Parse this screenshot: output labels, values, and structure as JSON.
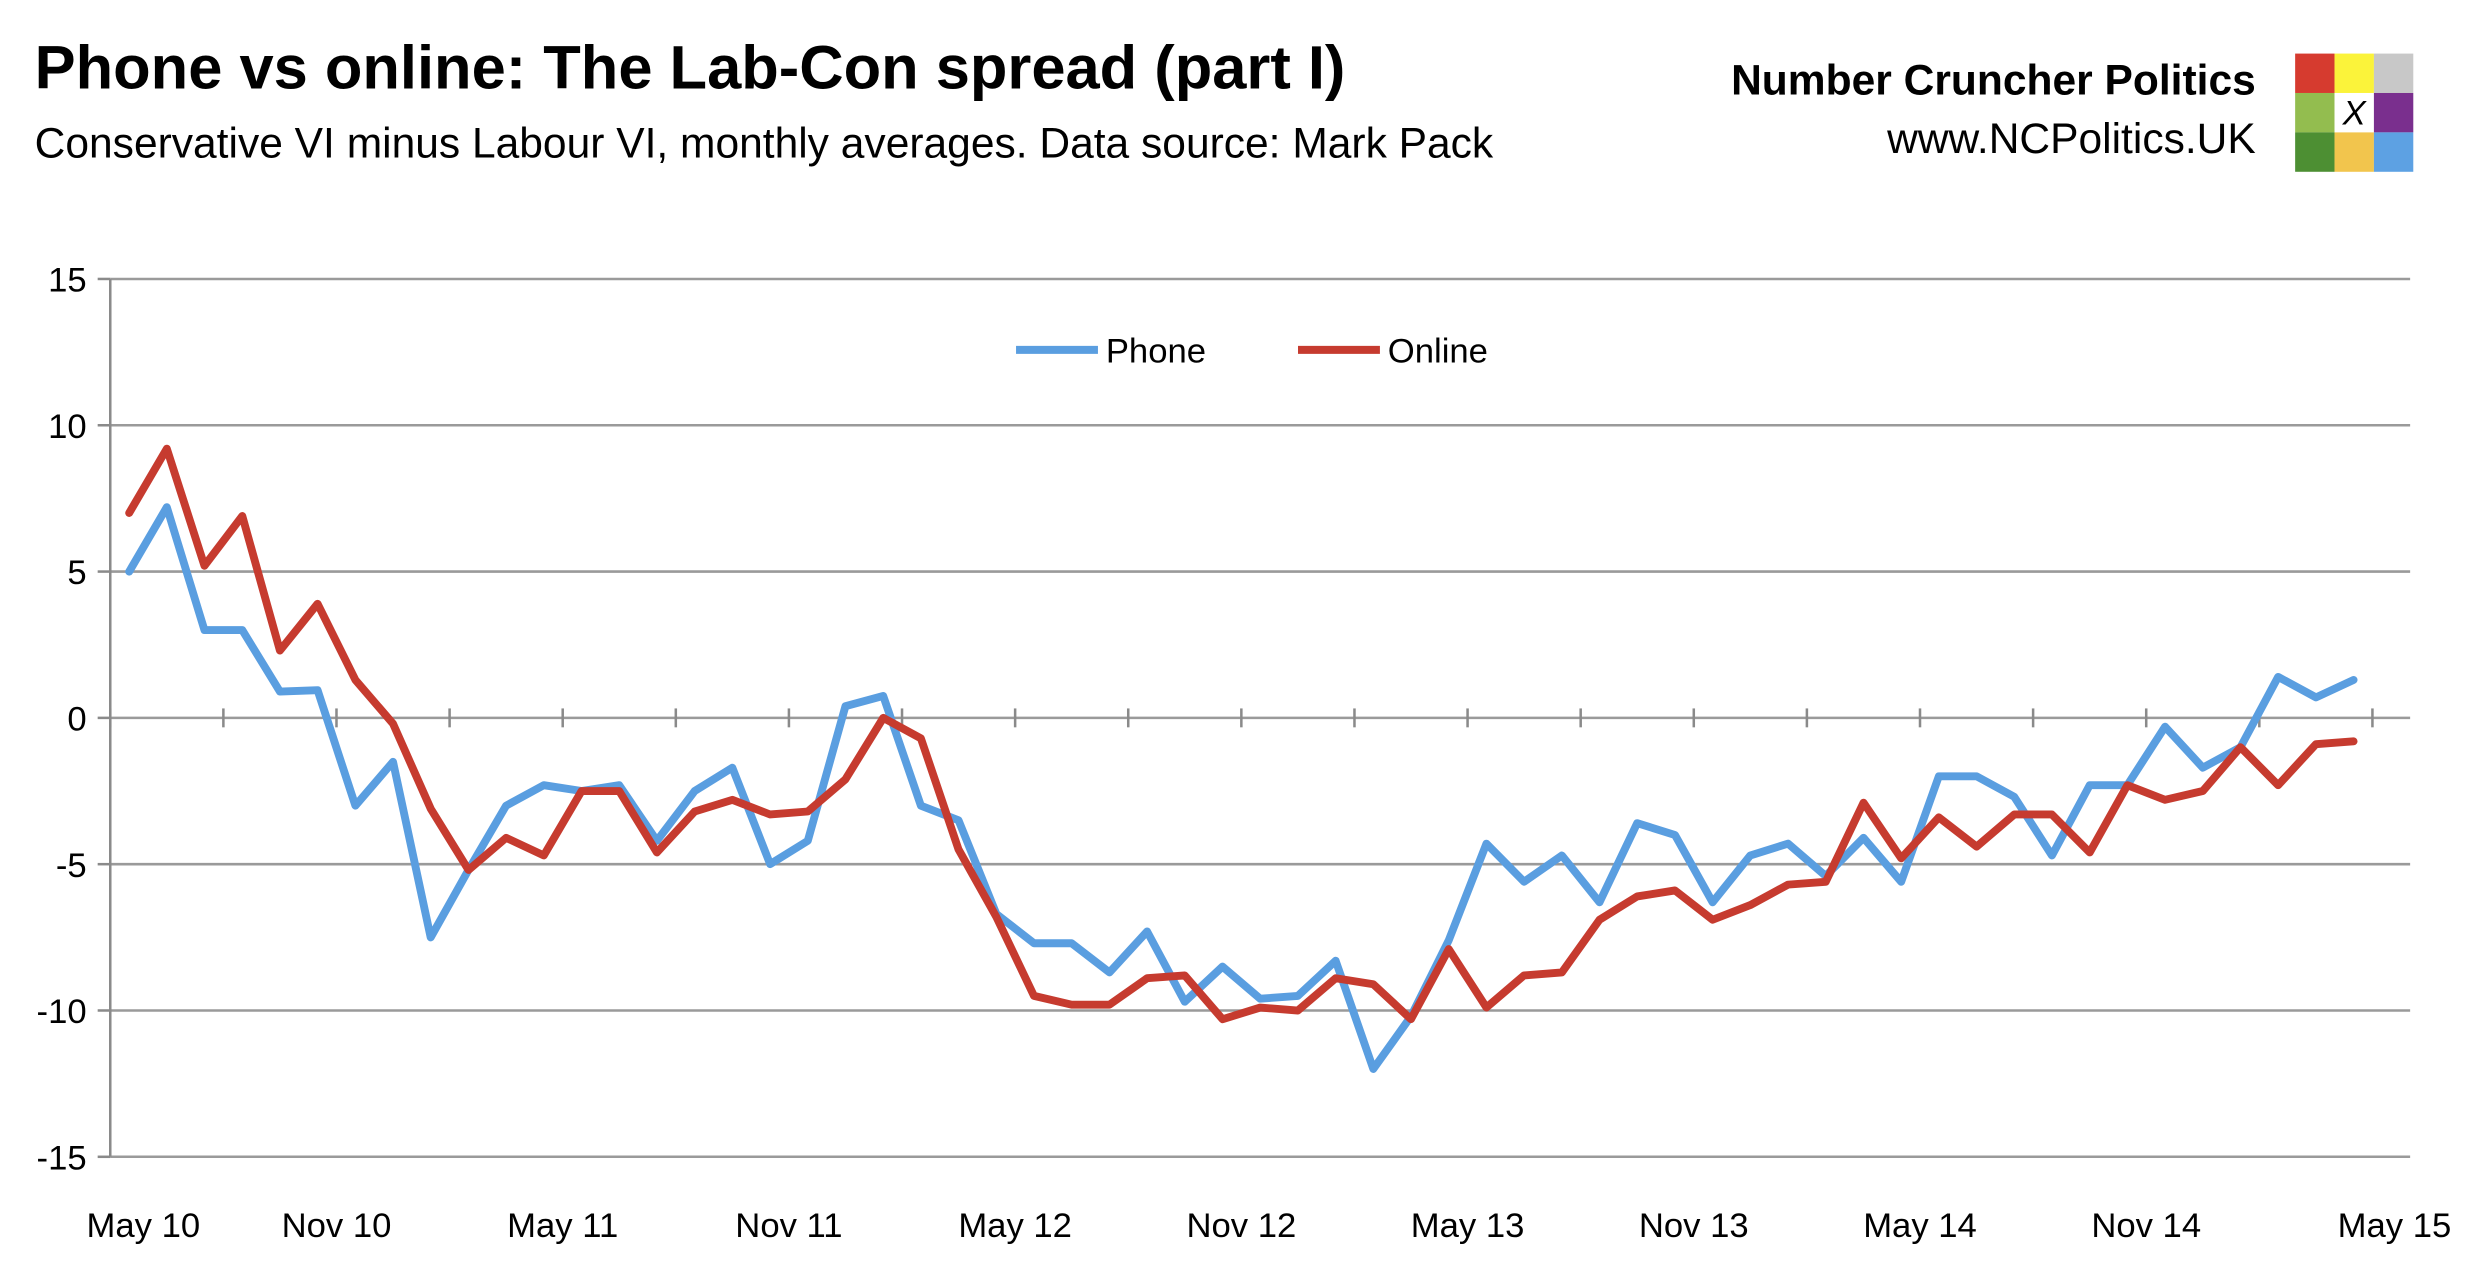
{
  "header": {
    "title": "Phone vs online: The Lab-Con spread (part I)",
    "subtitle": "Conservative VI minus Labour VI, monthly averages. Data source: Mark Pack"
  },
  "brand": {
    "name": "Number Cruncher Politics",
    "url": "www.NCPolitics.UK",
    "logo_cells": [
      {
        "color": "#d63b2f",
        "mark": ""
      },
      {
        "color": "#fbf33a",
        "mark": ""
      },
      {
        "color": "#c8c8c8",
        "mark": ""
      },
      {
        "color": "#93bd4f",
        "mark": ""
      },
      {
        "color": "#ffffff",
        "mark": "X"
      },
      {
        "color": "#7a2f8e",
        "mark": ""
      },
      {
        "color": "#4d8f33",
        "mark": ""
      },
      {
        "color": "#f2c54d",
        "mark": ""
      },
      {
        "color": "#5da1e3",
        "mark": ""
      }
    ]
  },
  "chart_data": {
    "type": "line",
    "title": "Phone vs online: The Lab-Con spread (part I)",
    "subtitle": "Conservative VI minus Labour VI, monthly averages. Data source: Mark Pack",
    "xlabel": "",
    "ylabel": "",
    "ylim": [
      -15,
      15
    ],
    "yticks": [
      15,
      10,
      5,
      0,
      -5,
      -10,
      -15
    ],
    "grid": true,
    "legend_position": "top-center",
    "x_period_count": 61,
    "x_tick_labels": [
      "May 10",
      "Nov 10",
      "May 11",
      "Nov 11",
      "May 12",
      "Nov 12",
      "May 13",
      "Nov 13",
      "May 14",
      "Nov 14",
      "May 15"
    ],
    "x_tick_positions": [
      0,
      6,
      12,
      18,
      24,
      30,
      36,
      42,
      48,
      54,
      60
    ],
    "categories": [
      "May 10",
      "Jun 10",
      "Jul 10",
      "Aug 10",
      "Sep 10",
      "Oct 10",
      "Nov 10",
      "Dec 10",
      "Jan 11",
      "Feb 11",
      "Mar 11",
      "Apr 11",
      "May 11",
      "Jun 11",
      "Jul 11",
      "Aug 11",
      "Sep 11",
      "Oct 11",
      "Nov 11",
      "Dec 11",
      "Jan 12",
      "Feb 12",
      "Mar 12",
      "Apr 12",
      "May 12",
      "Jun 12",
      "Jul 12",
      "Aug 12",
      "Sep 12",
      "Oct 12",
      "Nov 12",
      "Dec 12",
      "Jan 13",
      "Feb 13",
      "Mar 13",
      "Apr 13",
      "May 13",
      "Jun 13",
      "Jul 13",
      "Aug 13",
      "Sep 13",
      "Oct 13",
      "Nov 13",
      "Dec 13",
      "Jan 14",
      "Feb 14",
      "Mar 14",
      "Apr 14",
      "May 14",
      "Jun 14",
      "Jul 14",
      "Aug 14",
      "Sep 14",
      "Oct 14",
      "Nov 14",
      "Dec 14",
      "Jan 15",
      "Feb 15",
      "Mar 15",
      "Apr 15"
    ],
    "series": [
      {
        "name": "Phone",
        "color": "#5a9ee0",
        "values": [
          5.0,
          7.2,
          3.0,
          3.0,
          0.9,
          0.95,
          -3.0,
          -1.5,
          -7.5,
          -5.2,
          -3.0,
          -2.3,
          -2.5,
          -2.3,
          -4.2,
          -2.5,
          -1.7,
          -5.0,
          -4.2,
          0.4,
          0.75,
          -3.0,
          -3.5,
          -6.7,
          -7.7,
          -7.7,
          -8.7,
          -7.3,
          -9.7,
          -8.5,
          -9.6,
          -9.5,
          -8.3,
          -12.0,
          -10.2,
          -7.6,
          -4.3,
          -5.6,
          -4.7,
          -6.3,
          -3.6,
          -4.0,
          -6.3,
          -4.7,
          -4.3,
          -5.4,
          -4.1,
          -5.6,
          -2.0,
          -2.0,
          -2.7,
          -4.7,
          -2.3,
          -2.3,
          -0.3,
          -1.7,
          -1.0,
          1.4,
          0.7,
          1.3
        ]
      },
      {
        "name": "Online",
        "color": "#c63b2f",
        "values": [
          7.0,
          9.2,
          5.2,
          6.9,
          2.3,
          3.9,
          1.3,
          -0.2,
          -3.1,
          -5.2,
          -4.1,
          -4.7,
          -2.5,
          -2.5,
          -4.6,
          -3.2,
          -2.8,
          -3.3,
          -3.2,
          -2.1,
          0.0,
          -0.7,
          -4.5,
          -6.8,
          -9.5,
          -9.8,
          -9.8,
          -8.9,
          -8.8,
          -10.3,
          -9.9,
          -10.0,
          -8.9,
          -9.1,
          -10.3,
          -7.9,
          -9.9,
          -8.8,
          -8.7,
          -6.9,
          -6.1,
          -5.9,
          -6.9,
          -6.4,
          -5.7,
          -5.6,
          -2.9,
          -4.8,
          -3.4,
          -4.4,
          -3.3,
          -3.3,
          -4.6,
          -2.3,
          -2.8,
          -2.5,
          -1.0,
          -2.3,
          -0.9,
          -0.8
        ]
      }
    ]
  }
}
